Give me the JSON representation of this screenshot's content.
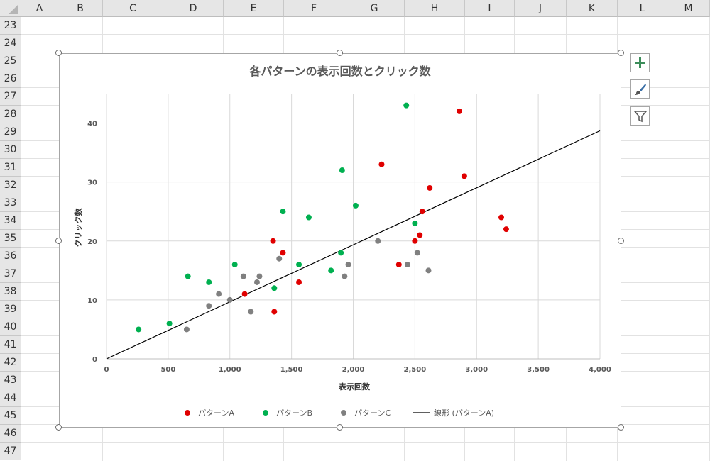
{
  "sheet": {
    "columns": [
      "A",
      "B",
      "C",
      "D",
      "E",
      "F",
      "G",
      "H",
      "I",
      "J",
      "K",
      "L",
      "M"
    ],
    "rows": [
      23,
      24,
      25,
      26,
      27,
      28,
      29,
      30,
      31,
      32,
      33,
      34,
      35,
      36,
      37,
      38,
      39,
      40,
      41,
      42,
      43,
      44,
      45,
      46,
      47
    ]
  },
  "chart_toolbar": {
    "icons": [
      "plus-icon",
      "brush-icon",
      "filter-icon"
    ],
    "accent": "#2e8b57"
  },
  "chart_data": {
    "type": "scatter",
    "title": "各パターンの表示回数とクリック数",
    "xlabel": "表示回数",
    "ylabel": "クリック数",
    "xlim": [
      0,
      4000
    ],
    "ylim": [
      0,
      45
    ],
    "x_ticks": [
      "0",
      "500",
      "1,000",
      "1,500",
      "2,000",
      "2,500",
      "3,000",
      "3,500",
      "4,000"
    ],
    "y_ticks": [
      "0",
      "10",
      "20",
      "30",
      "40"
    ],
    "grid": true,
    "legend_position": "bottom",
    "series": [
      {
        "name": "パターンA",
        "color": "#e00000",
        "points": [
          [
            1120,
            11
          ],
          [
            1350,
            20
          ],
          [
            1360,
            8
          ],
          [
            1430,
            18
          ],
          [
            1560,
            13
          ],
          [
            2230,
            33
          ],
          [
            2370,
            16
          ],
          [
            2500,
            20
          ],
          [
            2540,
            21
          ],
          [
            2560,
            25
          ],
          [
            2620,
            29
          ],
          [
            2860,
            42
          ],
          [
            2900,
            31
          ],
          [
            3200,
            24
          ],
          [
            3240,
            22
          ]
        ]
      },
      {
        "name": "パターンB",
        "color": "#00b050",
        "points": [
          [
            260,
            5
          ],
          [
            510,
            6
          ],
          [
            660,
            14
          ],
          [
            830,
            13
          ],
          [
            1040,
            16
          ],
          [
            1360,
            12
          ],
          [
            1430,
            25
          ],
          [
            1560,
            16
          ],
          [
            1640,
            24
          ],
          [
            1820,
            15
          ],
          [
            1900,
            18
          ],
          [
            1910,
            32
          ],
          [
            2020,
            26
          ],
          [
            2430,
            43
          ],
          [
            2500,
            23
          ]
        ]
      },
      {
        "name": "パターンC",
        "color": "#808080",
        "points": [
          [
            650,
            5
          ],
          [
            830,
            9
          ],
          [
            910,
            11
          ],
          [
            1000,
            10
          ],
          [
            1110,
            14
          ],
          [
            1170,
            8
          ],
          [
            1220,
            13
          ],
          [
            1240,
            14
          ],
          [
            1400,
            17
          ],
          [
            1930,
            14
          ],
          [
            1960,
            16
          ],
          [
            2200,
            20
          ],
          [
            2440,
            16
          ],
          [
            2520,
            18
          ],
          [
            2610,
            15
          ]
        ]
      }
    ],
    "trendline": {
      "name": "線形 (パターンA)",
      "color": "#000000",
      "x": [
        0,
        4000
      ],
      "y": [
        0,
        38.7
      ]
    }
  }
}
